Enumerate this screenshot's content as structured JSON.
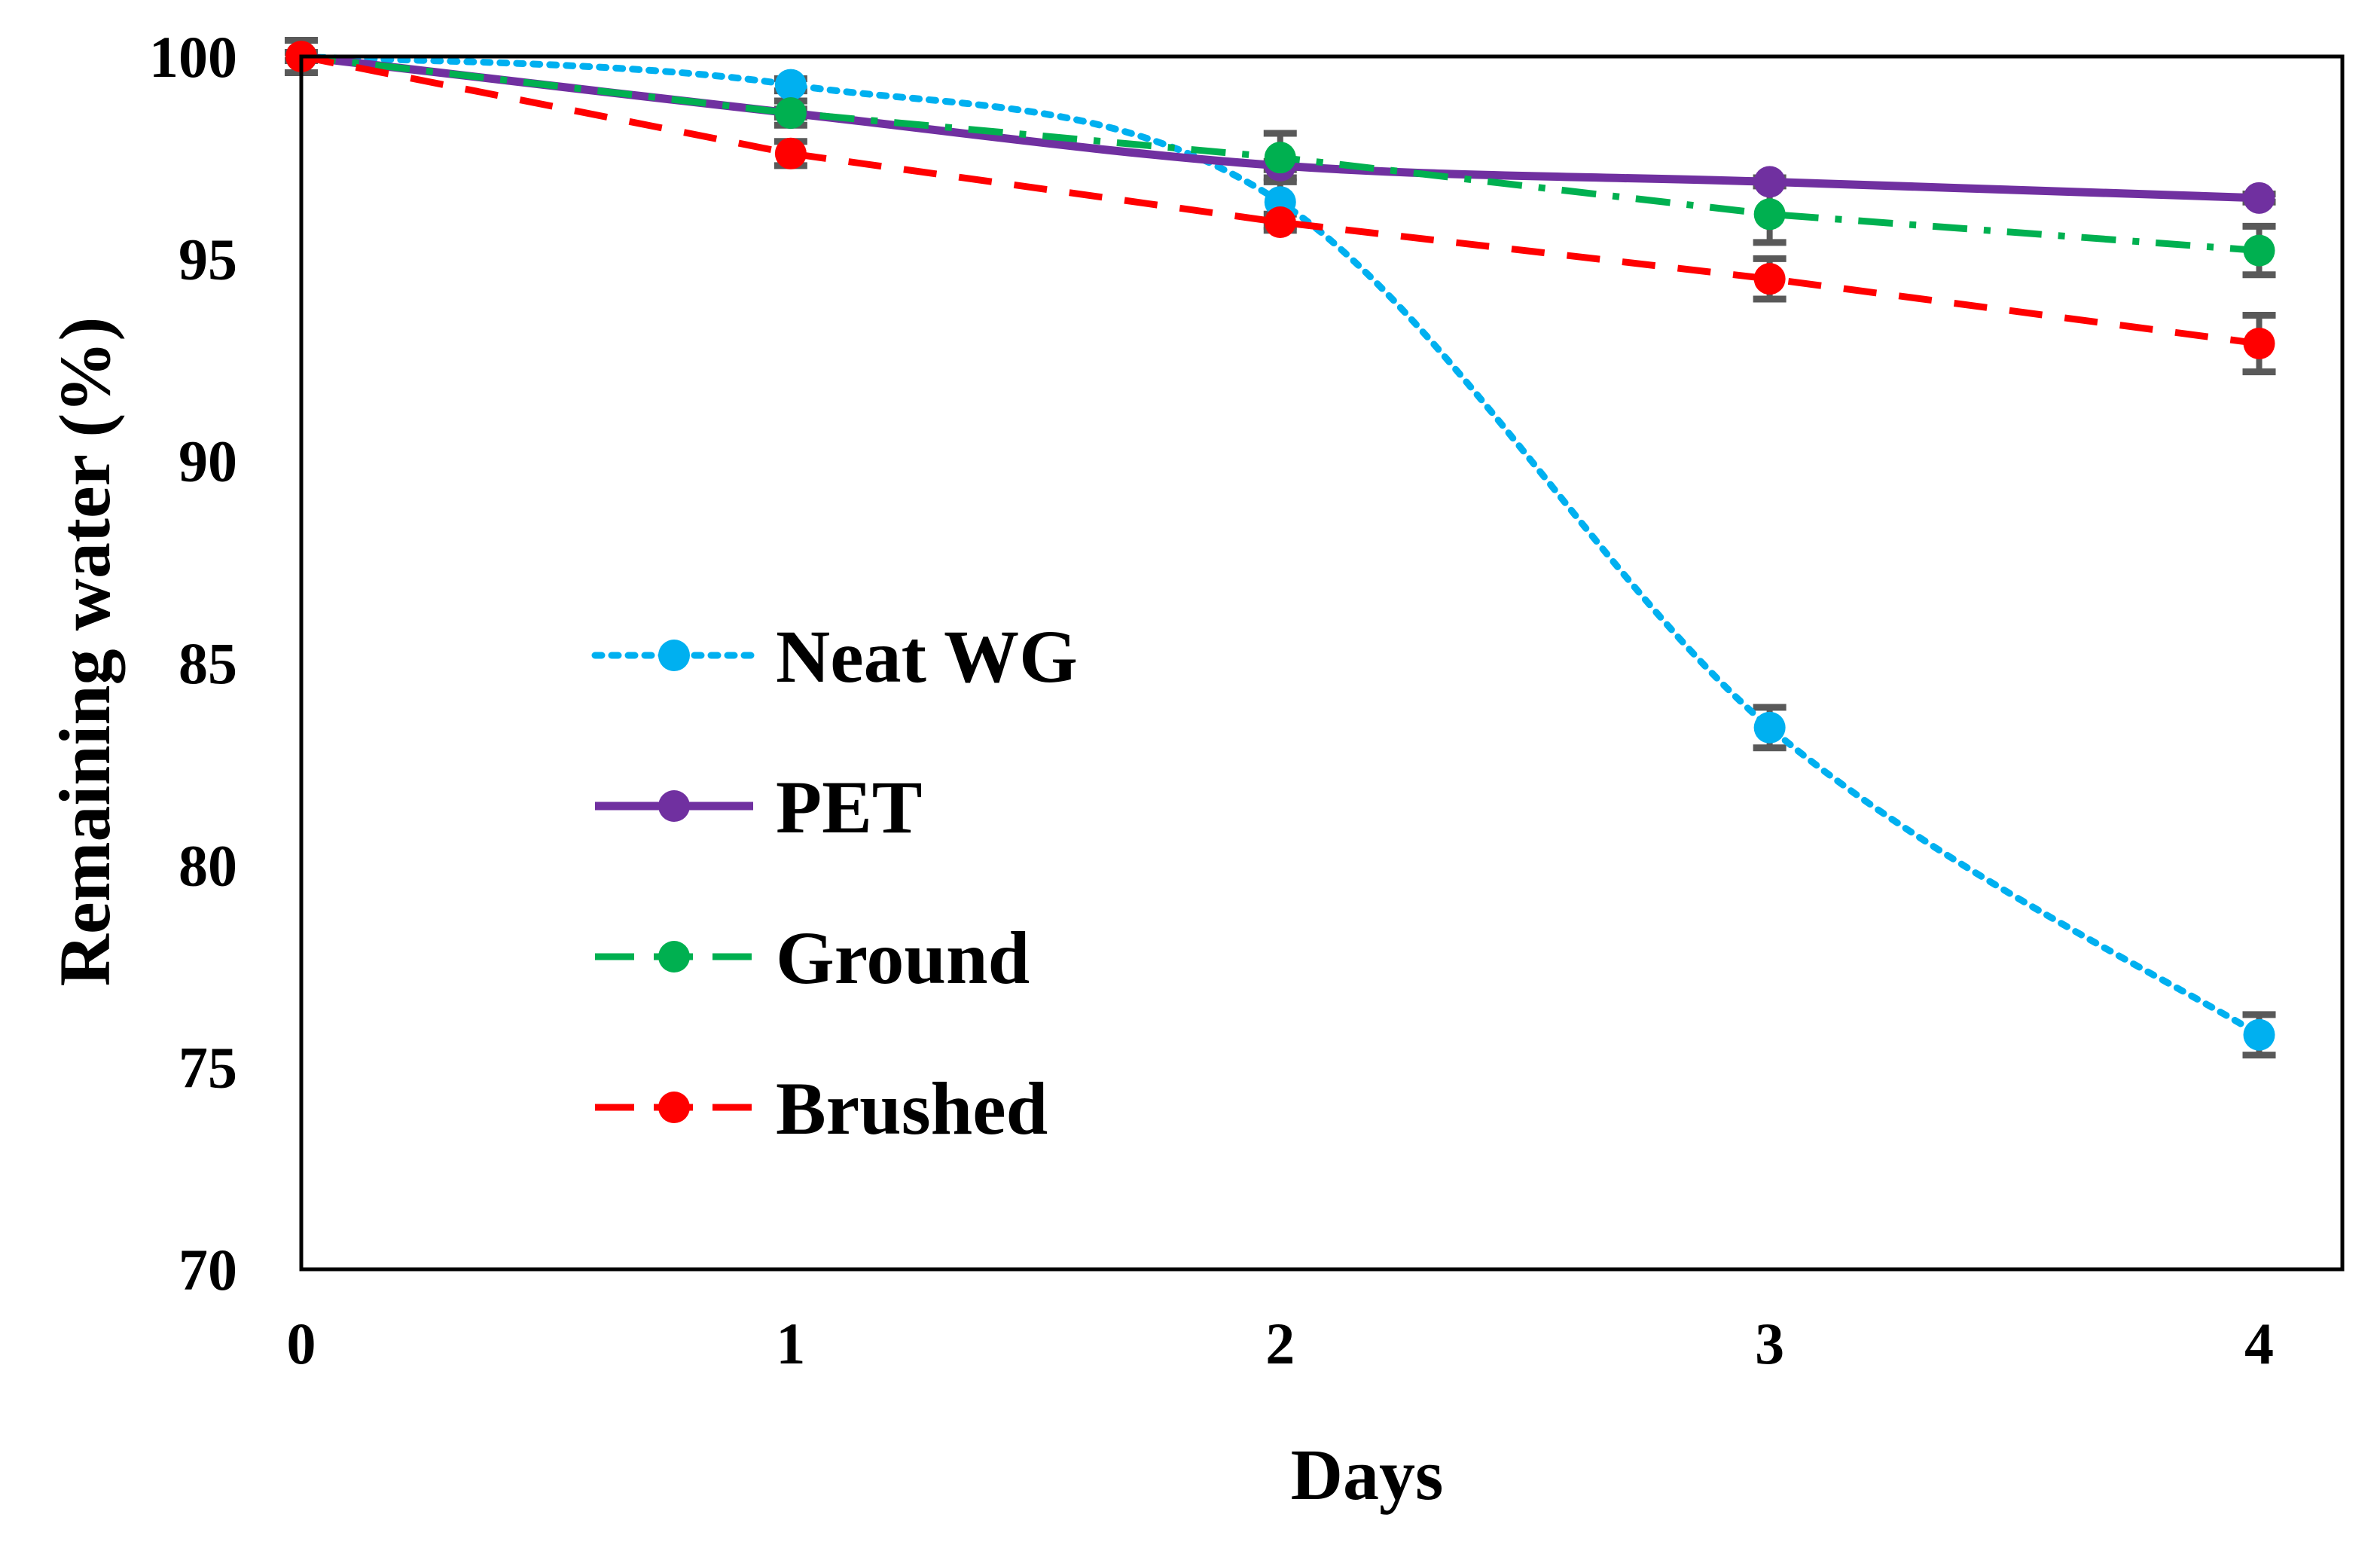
{
  "chart_data": {
    "type": "line",
    "title": "",
    "xlabel": "Days",
    "ylabel": "Remaining water (%)",
    "x": [
      0,
      1,
      2,
      3,
      4
    ],
    "xlim": [
      0,
      4.17
    ],
    "ylim": [
      70,
      100
    ],
    "xticks": [
      "0",
      "1",
      "2",
      "3",
      "4"
    ],
    "yticks": [
      "70",
      "75",
      "80",
      "85",
      "90",
      "95",
      "100"
    ],
    "grid": false,
    "legend_position": "center-left",
    "series": [
      {
        "name": "Neat WG",
        "color": "#00b0f0",
        "line_style": "dotted",
        "smooth": true,
        "values": [
          100,
          99.3,
          96.4,
          83.4,
          75.8
        ],
        "errors": [
          0.4,
          0.15,
          0.6,
          0.5,
          0.5
        ]
      },
      {
        "name": "PET",
        "color": "#7030a0",
        "line_style": "solid",
        "smooth": true,
        "values": [
          100,
          98.6,
          97.3,
          96.9,
          96.5
        ],
        "errors": [
          0.1,
          0.1,
          0.1,
          0.1,
          0.1
        ]
      },
      {
        "name": "Ground",
        "color": "#00b050",
        "line_style": "dash-dot",
        "smooth": false,
        "values": [
          100,
          98.6,
          97.5,
          96.1,
          95.2
        ],
        "errors": [
          0.1,
          0.3,
          0.6,
          0.7,
          0.6
        ]
      },
      {
        "name": "Brushed",
        "color": "#ff0000",
        "line_style": "dashed",
        "smooth": false,
        "values": [
          100,
          97.6,
          95.9,
          94.5,
          92.9
        ],
        "errors": [
          0.1,
          0.3,
          0.2,
          0.5,
          0.7
        ]
      }
    ],
    "error_bar_color": "#595959"
  }
}
